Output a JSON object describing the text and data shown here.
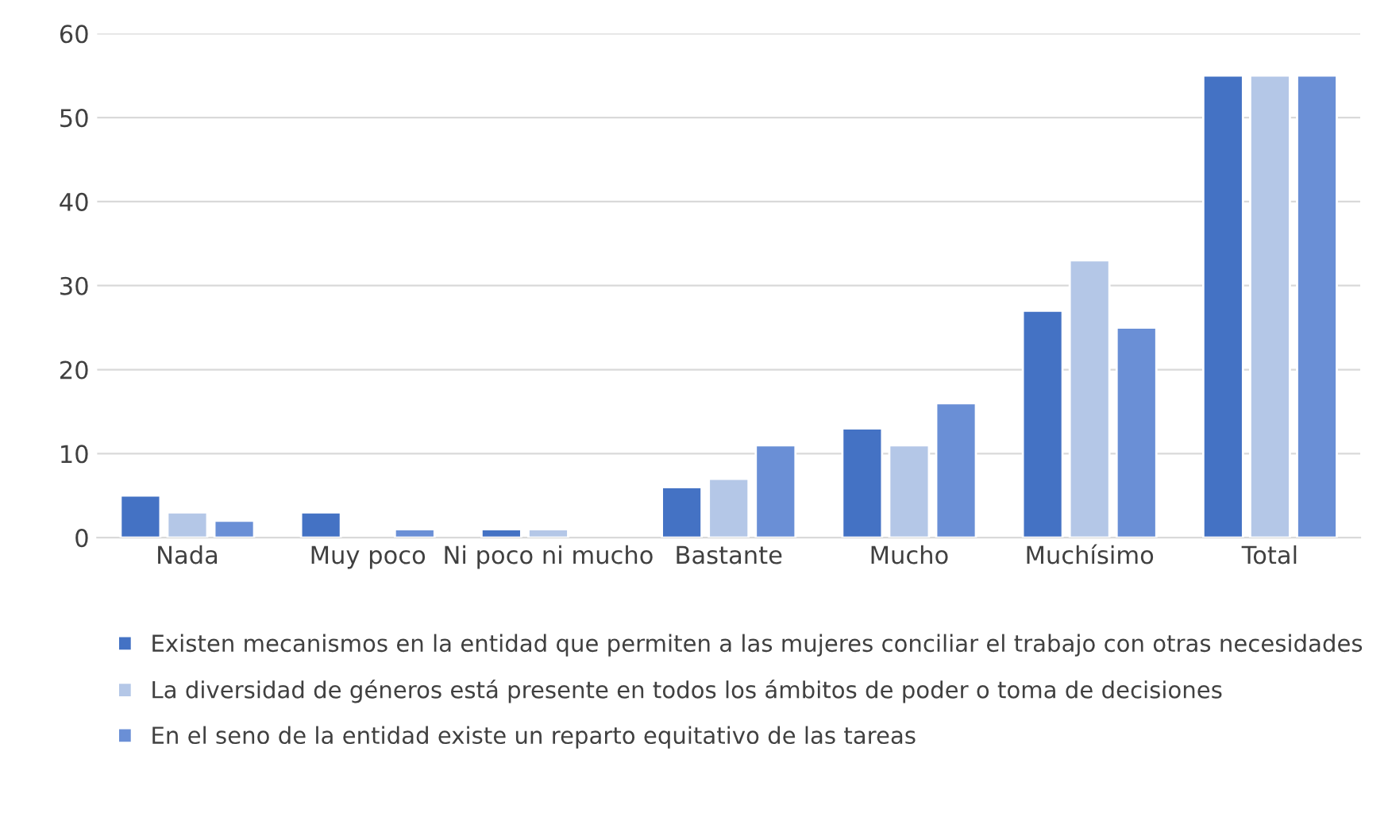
{
  "chart_data": {
    "type": "bar",
    "categories": [
      "Nada",
      "Muy poco",
      "Ni poco ni mucho",
      "Bastante",
      "Mucho",
      "Muchísimo",
      "Total"
    ],
    "series": [
      {
        "name": "Existen mecanismos en la entidad que permiten a las mujeres conciliar el trabajo con otras necesidades",
        "color": "#4472c4",
        "values": [
          5,
          3,
          1,
          6,
          13,
          27,
          55
        ]
      },
      {
        "name": "La diversidad de géneros está presente en todos los ámbitos de poder o toma de decisiones",
        "color": "#b4c7e7",
        "values": [
          3,
          null,
          1,
          7,
          11,
          33,
          55
        ]
      },
      {
        "name": "En el seno de la entidad existe un reparto equitativo de las tareas",
        "color": "#6a8fd6",
        "values": [
          2,
          1,
          null,
          11,
          16,
          25,
          55
        ]
      }
    ],
    "ylim": [
      0,
      60
    ],
    "yticks": [
      0,
      10,
      20,
      30,
      40,
      50,
      60
    ],
    "grid": "y",
    "legend": "bottom"
  }
}
